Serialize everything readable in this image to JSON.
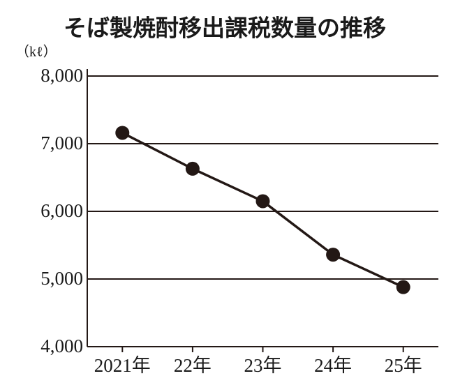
{
  "chart_data": {
    "type": "line",
    "title": "そば製焼酎移出課税数量の推移",
    "y_label": "（kℓ）",
    "categories": [
      "2021年",
      "22年",
      "23年",
      "24年",
      "25年"
    ],
    "values": [
      7160,
      6630,
      6150,
      5360,
      4880
    ],
    "color": "#231815",
    "ylim": [
      4000,
      8000
    ],
    "yticks": [
      {
        "value": 4000,
        "label": "4,000"
      },
      {
        "value": 5000,
        "label": "5,000"
      },
      {
        "value": 6000,
        "label": "6,000"
      },
      {
        "value": 7000,
        "label": "7,000"
      },
      {
        "value": 8000,
        "label": "8,000"
      }
    ],
    "grid": true
  }
}
